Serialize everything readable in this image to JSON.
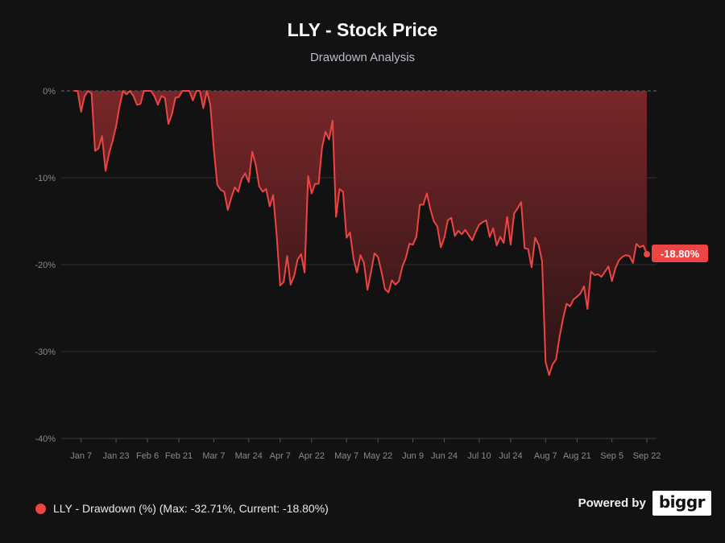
{
  "chart_data": {
    "type": "area",
    "title": "LLY - Stock Price",
    "subtitle": "Drawdown Analysis",
    "ylabel": "",
    "xlabel": "",
    "ylim": [
      -40,
      0
    ],
    "yticks": [
      0,
      -10,
      -20,
      -30,
      -40
    ],
    "ytick_labels": [
      "0%",
      "-10%",
      "-20%",
      "-30%",
      "-40%"
    ],
    "xtick_labels": [
      "Jan 7",
      "Jan 23",
      "Feb 6",
      "Feb 21",
      "Mar 7",
      "Mar 24",
      "Apr 7",
      "Apr 22",
      "May 7",
      "May 22",
      "Jun 9",
      "Jun 24",
      "Jul 10",
      "Jul 24",
      "Aug 7",
      "Aug 21",
      "Sep 5",
      "Sep 22"
    ],
    "xtick_index": [
      2,
      12,
      21,
      30,
      40,
      50,
      59,
      68,
      78,
      87,
      97,
      106,
      116,
      125,
      135,
      144,
      154,
      164
    ],
    "series": [
      {
        "name": "LLY - Drawdown (%)",
        "color": "#ef4444",
        "values": [
          0,
          0,
          -2.4,
          -0.6,
          0,
          -0.3,
          -6.9,
          -6.6,
          -5.2,
          -9.2,
          -7.2,
          -5.8,
          -4.1,
          -1.8,
          0,
          -0.4,
          0,
          -0.6,
          -1.6,
          -1.5,
          0,
          0,
          0,
          -0.6,
          -1.6,
          -0.6,
          -0.8,
          -3.8,
          -2.7,
          -0.8,
          -0.7,
          0,
          0,
          0,
          -1.1,
          0,
          0,
          -2.0,
          0,
          -1.6,
          -6.7,
          -10.8,
          -11.4,
          -11.6,
          -13.7,
          -12.3,
          -11.1,
          -11.6,
          -10.1,
          -9.5,
          -10.5,
          -7.0,
          -8.5,
          -11.0,
          -11.6,
          -11.3,
          -13.3,
          -12.0,
          -16.6,
          -22.4,
          -22.0,
          -19.0,
          -22.3,
          -21.3,
          -19.4,
          -18.8,
          -20.9,
          -9.8,
          -11.8,
          -10.7,
          -10.7,
          -6.5,
          -4.7,
          -5.6,
          -3.4,
          -14.5,
          -11.3,
          -11.6,
          -16.9,
          -16.3,
          -19.3,
          -20.9,
          -18.9,
          -19.8,
          -22.9,
          -20.9,
          -18.7,
          -19.1,
          -20.8,
          -22.8,
          -23.2,
          -21.8,
          -22.3,
          -21.9,
          -20.2,
          -19.2,
          -17.6,
          -17.7,
          -16.8,
          -13.1,
          -13.1,
          -11.8,
          -13.6,
          -15.0,
          -15.6,
          -18.0,
          -16.9,
          -14.9,
          -14.6,
          -16.7,
          -16.1,
          -16.5,
          -16.0,
          -16.6,
          -17.2,
          -16.2,
          -15.4,
          -15.1,
          -14.9,
          -16.8,
          -15.8,
          -17.8,
          -16.8,
          -17.5,
          -14.5,
          -17.7,
          -14.1,
          -13.5,
          -12.8,
          -18.1,
          -18.2,
          -20.3,
          -16.9,
          -17.7,
          -19.6,
          -31.2,
          -32.7,
          -31.5,
          -30.9,
          -28.3,
          -26.2,
          -24.5,
          -24.8,
          -24.0,
          -23.7,
          -23.3,
          -22.5,
          -25.1,
          -20.8,
          -21.2,
          -21.1,
          -21.4,
          -20.8,
          -20.2,
          -21.9,
          -20.4,
          -19.5,
          -19.1,
          -18.9,
          -19.0,
          -19.8,
          -17.6,
          -18.0,
          -17.8,
          -18.8
        ]
      }
    ],
    "current_label": "-18.80%",
    "legend_position": "bottom-left"
  },
  "legend": {
    "label": "LLY - Drawdown (%) (Max: -32.71%, Current: -18.80%)"
  },
  "branding": {
    "powered_label": "Powered by",
    "logo_text": "biggr"
  },
  "colors": {
    "background": "#121212",
    "line": "#ef4444",
    "grid": "#333333",
    "axis_text": "#8a8a8a"
  }
}
